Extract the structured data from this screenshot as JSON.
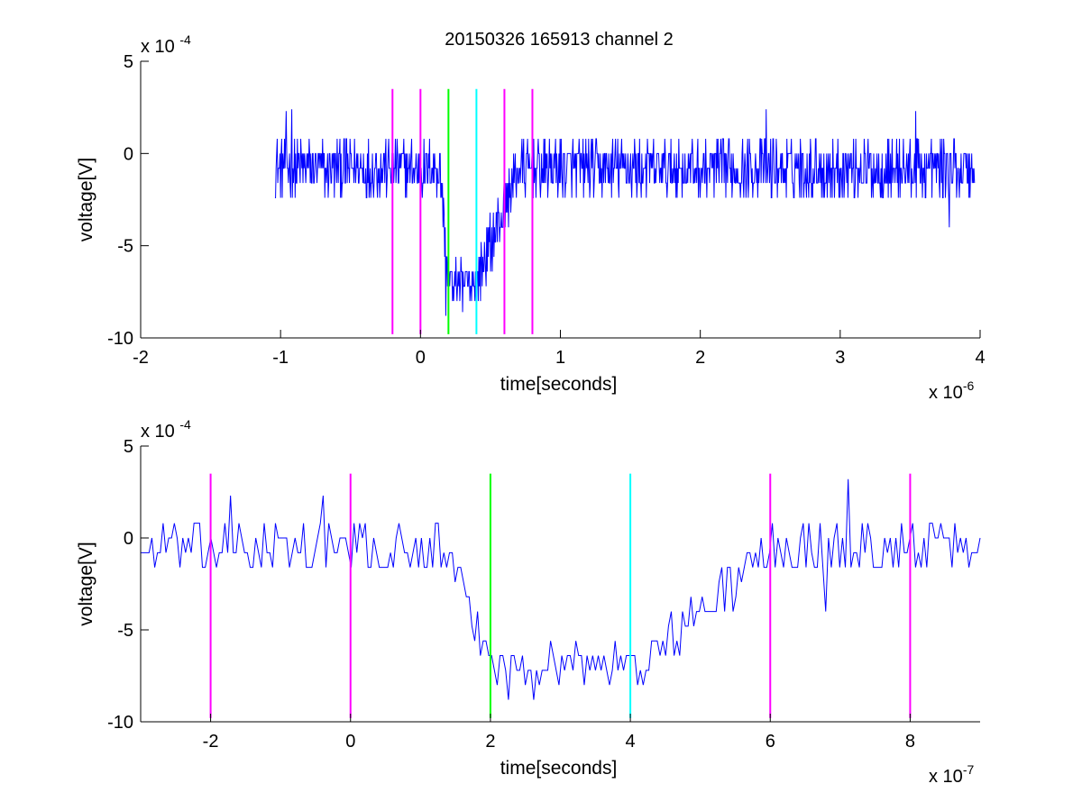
{
  "figure_title": "20150326 165913 channel 2",
  "chart_data": [
    {
      "type": "line",
      "title": "20150326 165913 channel 2",
      "xlabel": "time[seconds]",
      "ylabel": "voltage[V]",
      "x_exponent_label": "x 10",
      "x_exponent_power": "-6",
      "y_exponent_label": "x 10",
      "y_exponent_power": "-4",
      "xlim": [
        -2,
        4
      ],
      "ylim": [
        -10,
        5
      ],
      "x_unit_scale": "1e-6",
      "y_unit_scale": "1e-4",
      "x_ticks": [
        -2,
        -1,
        0,
        1,
        2,
        3,
        4
      ],
      "x_tick_labels": [
        "-2",
        "-1",
        "0",
        "1",
        "2",
        "3",
        "4"
      ],
      "y_ticks": [
        5,
        0,
        -5,
        -10
      ],
      "y_tick_labels": [
        "5",
        "0",
        "-5",
        "-10"
      ],
      "grid": false,
      "series": [
        {
          "color": "#0000ff",
          "description": "noisy voltage trace; baseline ~-0.8 with noise amplitude ~1.5, dip to ~-7 between 0.15 and 0.42",
          "x_start": -1.04,
          "x_end": 3.96,
          "points": 1250,
          "baseline": -0.8,
          "noise": 1.5,
          "dip_start": 0.14,
          "dip_full": 0.2,
          "dip_end": 0.4,
          "dip_recover": 0.7,
          "dip_level": -7,
          "spikes": [
            [
              -0.96,
              2.3
            ],
            [
              -0.92,
              2.4
            ],
            [
              2.47,
              2.4
            ],
            [
              3.54,
              2.3
            ],
            [
              3.78,
              -4.0
            ],
            [
              0.18,
              -8.8
            ],
            [
              0.3,
              -8.6
            ]
          ]
        }
      ],
      "vlines": [
        {
          "x": -0.2,
          "color": "#ff00ff",
          "y_range": [
            -9.8,
            3.5
          ]
        },
        {
          "x": 0.0,
          "color": "#ff00ff",
          "y_range": [
            -9.8,
            3.5
          ]
        },
        {
          "x": 0.2,
          "color": "#00ff00",
          "y_range": [
            -9.8,
            3.5
          ]
        },
        {
          "x": 0.4,
          "color": "#00ffff",
          "y_range": [
            -9.8,
            3.5
          ]
        },
        {
          "x": 0.6,
          "color": "#ff00ff",
          "y_range": [
            -9.8,
            3.5
          ]
        },
        {
          "x": 0.8,
          "color": "#ff00ff",
          "y_range": [
            -9.8,
            3.5
          ]
        }
      ]
    },
    {
      "type": "line",
      "title": "",
      "xlabel": "time[seconds]",
      "ylabel": "voltage[V]",
      "x_exponent_label": "x 10",
      "x_exponent_power": "-7",
      "y_exponent_label": "x 10",
      "y_exponent_power": "-4",
      "xlim": [
        -3,
        9
      ],
      "ylim": [
        -10,
        5
      ],
      "x_unit_scale": "1e-7",
      "y_unit_scale": "1e-4",
      "x_ticks": [
        -2,
        0,
        2,
        4,
        6,
        8
      ],
      "x_tick_labels": [
        "-2",
        "0",
        "2",
        "4",
        "6",
        "8"
      ],
      "y_ticks": [
        5,
        0,
        -5,
        -10
      ],
      "y_tick_labels": [
        "5",
        "0",
        "-5",
        "-10"
      ],
      "grid": false,
      "series": [
        {
          "color": "#0000ff",
          "description": "zoomed view of the same trace; baseline ~-0.5, dip starting ~1.3, low ~-6.8 from 2 to 4, recovery by ~6",
          "x_start": -3,
          "x_end": 9,
          "points": 300,
          "baseline": -0.6,
          "noise": 1.4,
          "dip_start": 1.3,
          "dip_full": 2.0,
          "dip_end": 4.2,
          "dip_recover": 6.0,
          "dip_level": -6.8,
          "spikes": [
            [
              -1.7,
              2.3
            ],
            [
              -0.4,
              2.3
            ],
            [
              7.1,
              3.2
            ],
            [
              2.25,
              -8.8
            ],
            [
              2.6,
              -8.8
            ],
            [
              6.8,
              -4.0
            ]
          ]
        }
      ],
      "vlines": [
        {
          "x": -2,
          "color": "#ff00ff",
          "y_range": [
            -9.8,
            3.5
          ]
        },
        {
          "x": 0,
          "color": "#ff00ff",
          "y_range": [
            -9.8,
            3.5
          ]
        },
        {
          "x": 2,
          "color": "#00ff00",
          "y_range": [
            -9.8,
            3.5
          ]
        },
        {
          "x": 4,
          "color": "#00ffff",
          "y_range": [
            -9.8,
            3.5
          ]
        },
        {
          "x": 6,
          "color": "#ff00ff",
          "y_range": [
            -9.8,
            3.5
          ]
        },
        {
          "x": 8,
          "color": "#ff00ff",
          "y_range": [
            -9.8,
            3.5
          ]
        }
      ]
    }
  ]
}
